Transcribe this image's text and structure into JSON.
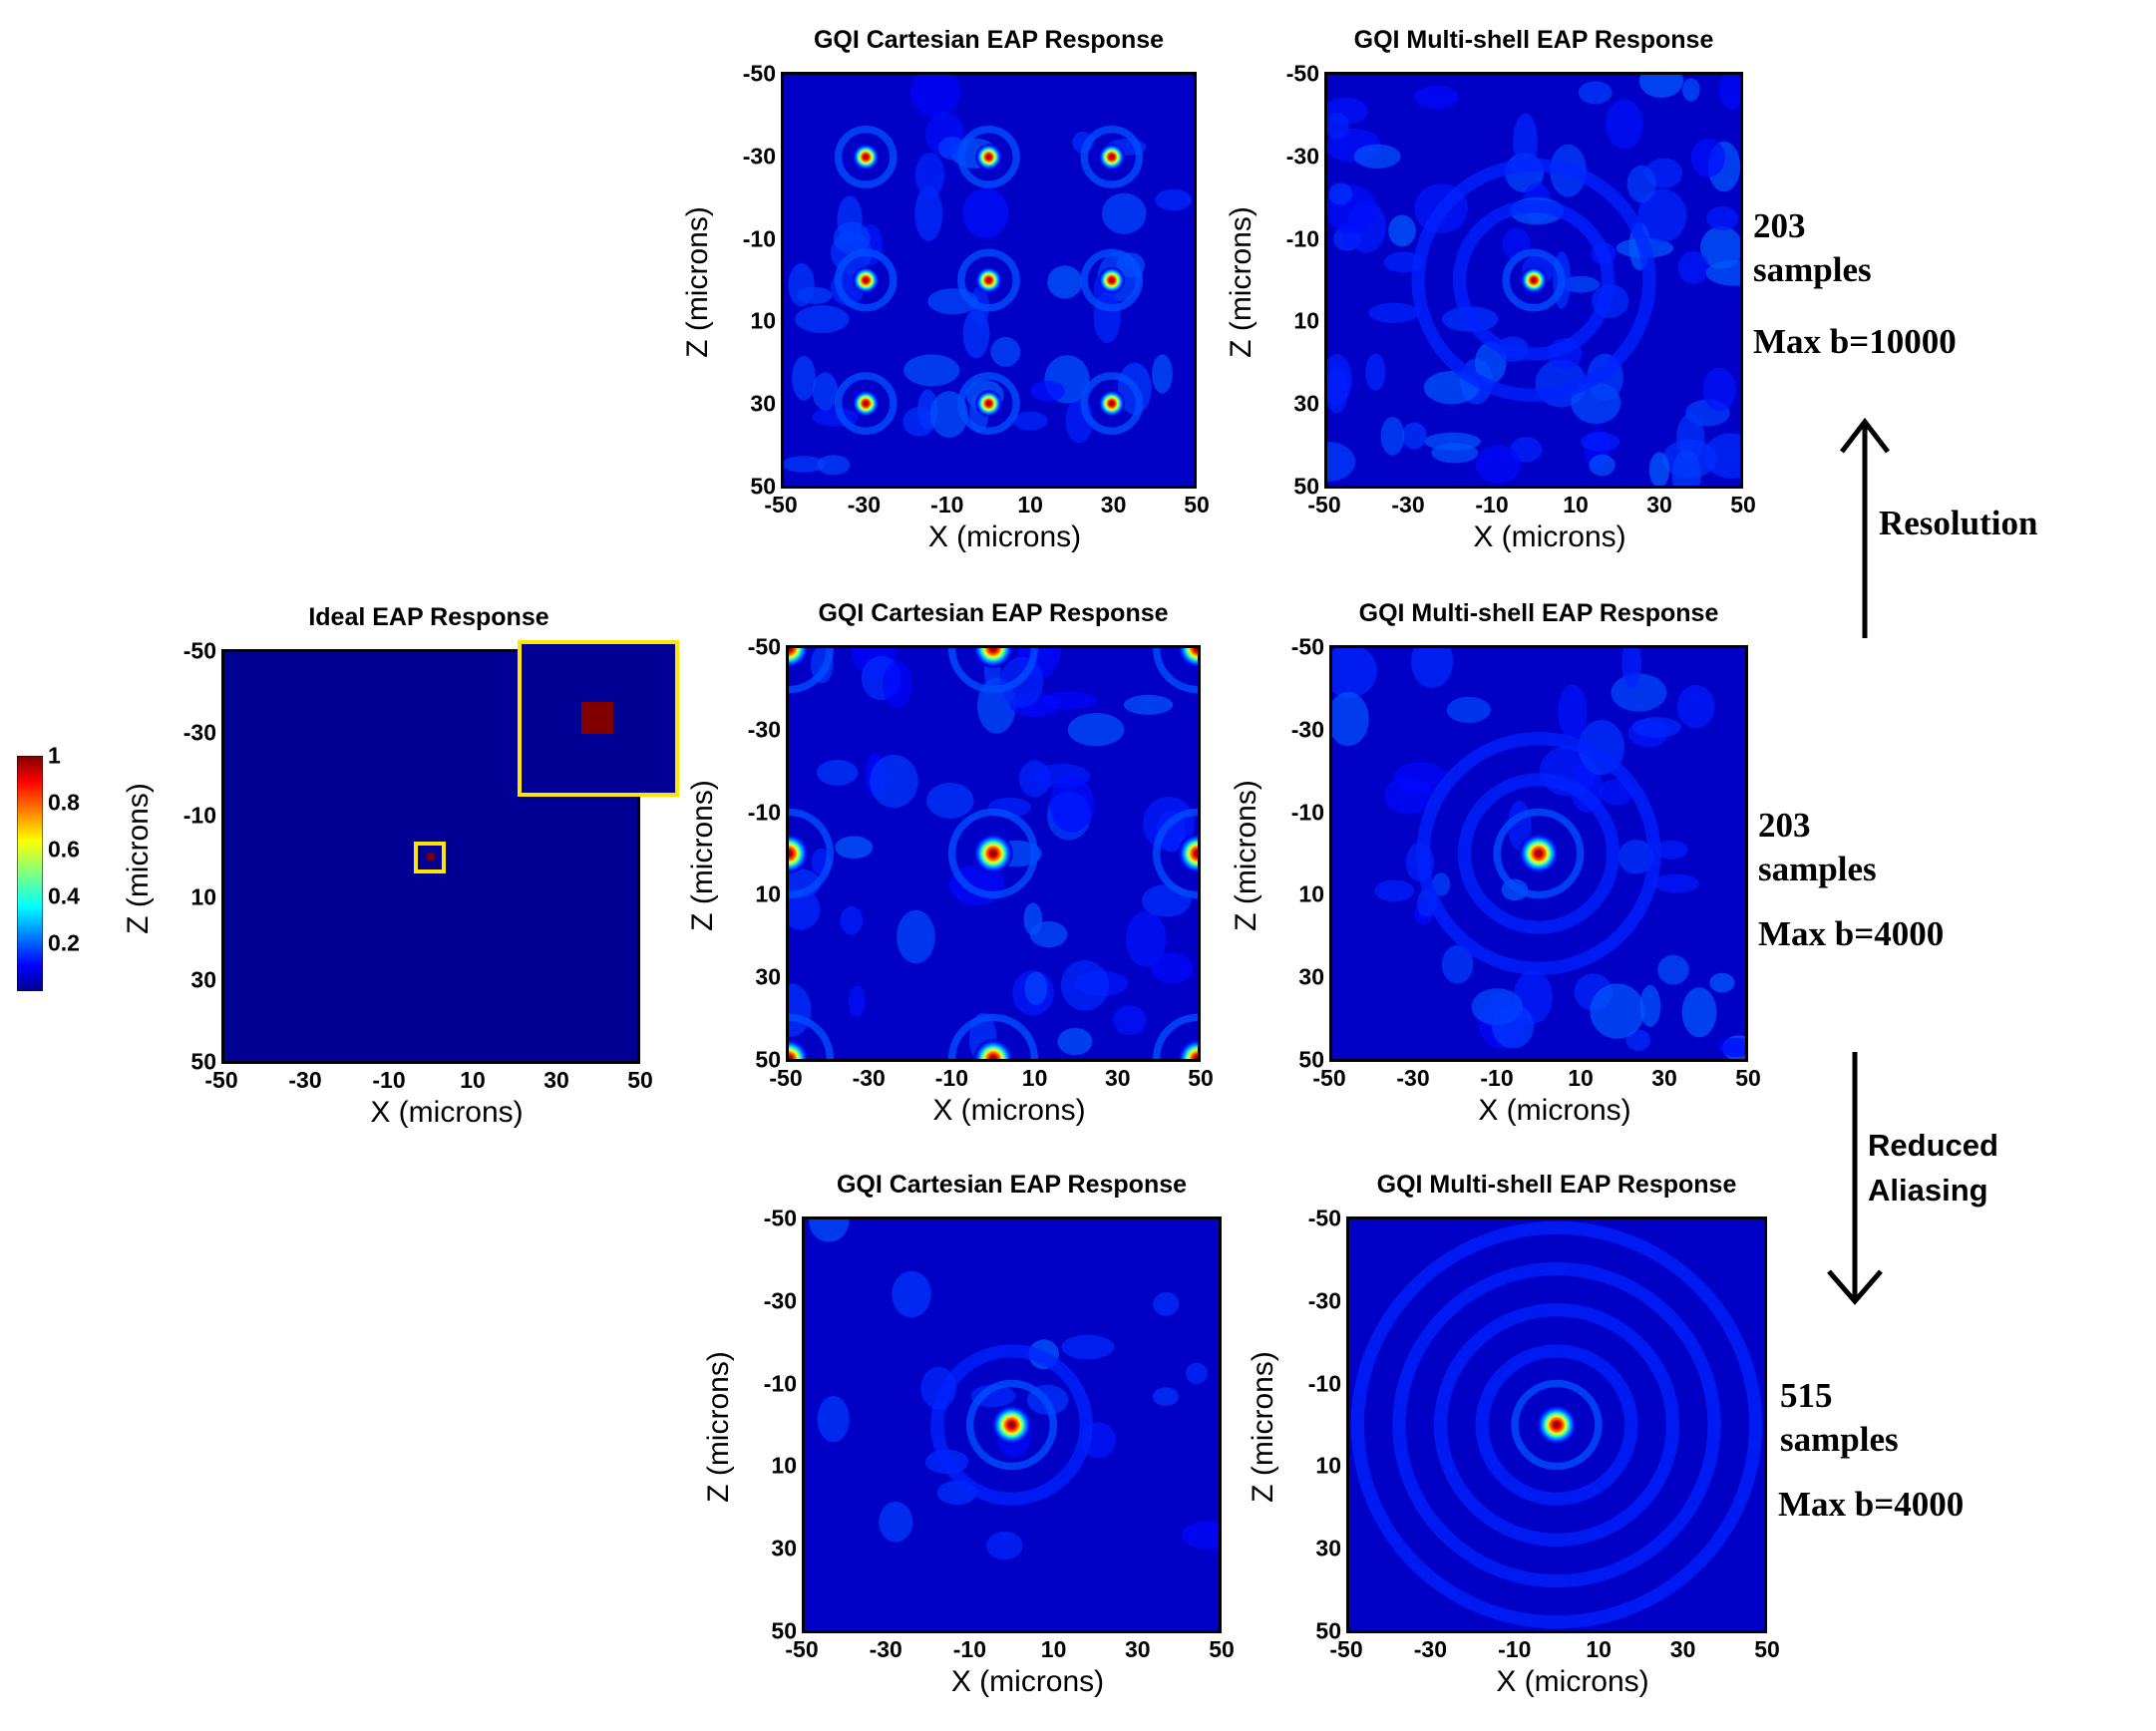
{
  "chart_data": [
    {
      "id": "ideal",
      "type": "heatmap",
      "title": "Ideal EAP Response",
      "xlabel": "X (microns)",
      "ylabel": "Z (microns)",
      "xlim": [
        -50,
        50
      ],
      "ylim": [
        -50,
        50
      ],
      "xticks": [
        "-50",
        "-30",
        "-10",
        "10",
        "30",
        "50"
      ],
      "yticks": [
        "-50",
        "-30",
        "-10",
        "10",
        "30",
        "50"
      ],
      "peaks": [
        {
          "x": 0,
          "z": 0,
          "value": 1
        }
      ],
      "background": 0,
      "inset": "zoom of center region showing single peak voxel"
    },
    {
      "id": "cart-10000",
      "type": "heatmap",
      "title": "GQI Cartesian EAP Response",
      "xlabel": "X (microns)",
      "ylabel": "Z (microns)",
      "xlim": [
        -50,
        50
      ],
      "ylim": [
        -50,
        50
      ],
      "xticks": [
        "-50",
        "-30",
        "-10",
        "10",
        "30",
        "50"
      ],
      "yticks": [
        "-50",
        "-30",
        "-10",
        "10",
        "30",
        "50"
      ],
      "peaks": [
        {
          "x": -30,
          "z": -30
        },
        {
          "x": 0,
          "z": -30
        },
        {
          "x": 30,
          "z": -30
        },
        {
          "x": -30,
          "z": 0
        },
        {
          "x": 0,
          "z": 0
        },
        {
          "x": 30,
          "z": 0
        },
        {
          "x": -30,
          "z": 30
        },
        {
          "x": 0,
          "z": 30
        },
        {
          "x": 30,
          "z": 30
        }
      ],
      "peak_width": 3.2
    },
    {
      "id": "multi-10000",
      "type": "heatmap",
      "title": "GQI Multi-shell EAP Response",
      "xlabel": "X (microns)",
      "ylabel": "Z (microns)",
      "xlim": [
        -50,
        50
      ],
      "ylim": [
        -50,
        50
      ],
      "xticks": [
        "-50",
        "-30",
        "-10",
        "10",
        "30",
        "50"
      ],
      "yticks": [
        "-50",
        "-30",
        "-10",
        "10",
        "30",
        "50"
      ],
      "peaks": [
        {
          "x": 0,
          "z": 0
        }
      ],
      "peak_width": 3.2,
      "rings": 2,
      "noise": "high"
    },
    {
      "id": "cart-4000",
      "type": "heatmap",
      "title": "GQI Cartesian EAP Response",
      "xlabel": "X (microns)",
      "ylabel": "Z (microns)",
      "xlim": [
        -50,
        50
      ],
      "ylim": [
        -50,
        50
      ],
      "xticks": [
        "-50",
        "-30",
        "-10",
        "10",
        "30",
        "50"
      ],
      "yticks": [
        "-50",
        "-30",
        "-10",
        "10",
        "30",
        "50"
      ],
      "peaks": [
        {
          "x": -50,
          "z": -50
        },
        {
          "x": 0,
          "z": -50
        },
        {
          "x": 50,
          "z": -50
        },
        {
          "x": -50,
          "z": 0
        },
        {
          "x": 0,
          "z": 0
        },
        {
          "x": 50,
          "z": 0
        },
        {
          "x": -50,
          "z": 50
        },
        {
          "x": 0,
          "z": 50
        },
        {
          "x": 50,
          "z": 50
        }
      ],
      "peak_width": 4.8
    },
    {
      "id": "multi-4000-203",
      "type": "heatmap",
      "title": "GQI Multi-shell EAP Response",
      "xlabel": "X (microns)",
      "ylabel": "Z (microns)",
      "xlim": [
        -50,
        50
      ],
      "ylim": [
        -50,
        50
      ],
      "xticks": [
        "-50",
        "-30",
        "-10",
        "10",
        "30",
        "50"
      ],
      "yticks": [
        "-50",
        "-30",
        "-10",
        "10",
        "30",
        "50"
      ],
      "peaks": [
        {
          "x": 0,
          "z": 0
        }
      ],
      "peak_width": 4.8,
      "rings": 2,
      "noise": "medium"
    },
    {
      "id": "cart-4000-515",
      "type": "heatmap",
      "title": "GQI Cartesian EAP Response",
      "xlabel": "X (microns)",
      "ylabel": "Z (microns)",
      "xlim": [
        -50,
        50
      ],
      "ylim": [
        -50,
        50
      ],
      "xticks": [
        "-50",
        "-30",
        "-10",
        "10",
        "30",
        "50"
      ],
      "yticks": [
        "-50",
        "-30",
        "-10",
        "10",
        "30",
        "50"
      ],
      "peaks": [
        {
          "x": 0,
          "z": 0
        }
      ],
      "peak_width": 4.8,
      "rings": 1,
      "noise": "low"
    },
    {
      "id": "multi-4000-515",
      "type": "heatmap",
      "title": "GQI Multi-shell EAP Response",
      "xlabel": "X (microns)",
      "ylabel": "Z (microns)",
      "xlim": [
        -50,
        50
      ],
      "ylim": [
        -50,
        50
      ],
      "xticks": [
        "-50",
        "-30",
        "-10",
        "10",
        "30",
        "50"
      ],
      "yticks": [
        "-50",
        "-30",
        "-10",
        "10",
        "30",
        "50"
      ],
      "peaks": [
        {
          "x": 0,
          "z": 0
        }
      ],
      "peak_width": 4.8,
      "rings": 4,
      "noise": "none"
    }
  ],
  "colorbar": {
    "colormap": "jet",
    "range": [
      0,
      1
    ],
    "ticks": [
      "1",
      "0.8",
      "0.6",
      "0.4",
      "0.2"
    ]
  },
  "annotations": {
    "row1": {
      "samples_count": "203",
      "samples_word": "samples",
      "maxb": "Max b=10000"
    },
    "row2": {
      "samples_count": "203",
      "samples_word": "samples",
      "maxb": "Max b=4000"
    },
    "row3": {
      "samples_count": "515",
      "samples_word": "samples",
      "maxb": "Max b=4000"
    },
    "arrow_up_label": "Resolution",
    "arrow_down_label_1": "Reduced",
    "arrow_down_label_2": "Aliasing"
  },
  "colors": {
    "background_jet_low": "#00008f",
    "inset_border": "#ffe600",
    "peak_center": "#800000"
  }
}
